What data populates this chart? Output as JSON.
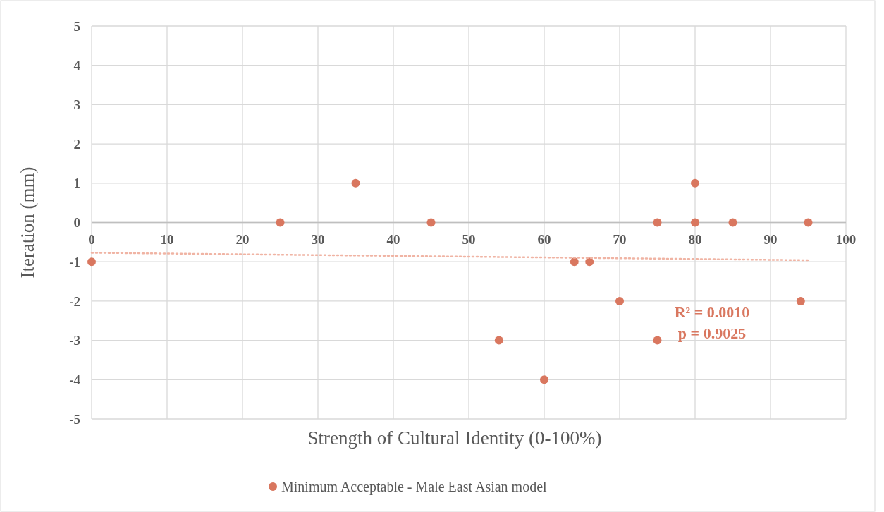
{
  "chart_data": {
    "type": "scatter",
    "xlabel": "Strength of Cultural Identity (0-100%)",
    "ylabel": "Iteration (mm)",
    "xlim": [
      0,
      100
    ],
    "xticks": [
      0,
      10,
      20,
      30,
      40,
      50,
      60,
      70,
      80,
      90,
      100
    ],
    "ylim": [
      -5,
      5
    ],
    "yticks": [
      -5,
      -4,
      -3,
      -2,
      -1,
      0,
      1,
      2,
      3,
      4,
      5
    ],
    "grid": true,
    "legend": "bottom",
    "series": [
      {
        "name": "Minimum Acceptable - Male East Asian model",
        "marker": "circle",
        "color": "#d9775f",
        "x": [
          0,
          25,
          35,
          45,
          54,
          60,
          64,
          66,
          70,
          75,
          75,
          80,
          80,
          85,
          94,
          95
        ],
        "values": [
          -1,
          0,
          1,
          0,
          -3,
          -4,
          -1,
          -1,
          -2,
          0,
          -3,
          1,
          0,
          0,
          -2,
          0
        ]
      },
      {
        "type": "line",
        "marker": "none",
        "line_style": "dotted",
        "color": "#f0b4a4",
        "x": [
          0,
          95
        ],
        "values": [
          -0.77,
          -0.96
        ]
      }
    ],
    "annotations": [
      "R² = 0.0010",
      "p = 0.9025"
    ]
  }
}
